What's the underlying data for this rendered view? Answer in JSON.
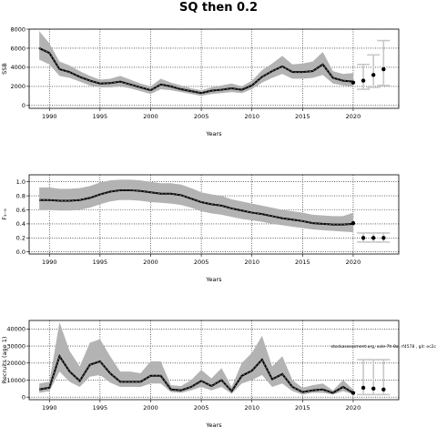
{
  "title": "SQ then 0.2",
  "chart_data": [
    {
      "type": "line",
      "ylabel": "SSB",
      "xlabel": "Years",
      "xlim": [
        1988,
        2024.5
      ],
      "ylim": [
        -300,
        8000
      ],
      "xticks": [
        1990,
        1995,
        2000,
        2005,
        2010,
        2015,
        2020
      ],
      "yticks": [
        0,
        2000,
        4000,
        6000,
        8000
      ],
      "ytick_labels": [
        "0",
        "2000",
        "4000",
        "6000",
        "8000"
      ],
      "grid": true,
      "x": [
        1989,
        1990,
        1991,
        1992,
        1993,
        1994,
        1995,
        1996,
        1997,
        1998,
        1999,
        2000,
        2001,
        2002,
        2003,
        2004,
        2005,
        2006,
        2007,
        2008,
        2009,
        2010,
        2011,
        2012,
        2013,
        2014,
        2015,
        2016,
        2017,
        2018,
        2019,
        2020
      ],
      "median": [
        6000,
        5500,
        3800,
        3500,
        3000,
        2600,
        2300,
        2350,
        2500,
        2200,
        1900,
        1600,
        2200,
        2000,
        1700,
        1500,
        1300,
        1550,
        1650,
        1800,
        1650,
        2100,
        3000,
        3600,
        4100,
        3500,
        3500,
        3600,
        4300,
        2900,
        2600,
        2500
      ],
      "lower": [
        4800,
        4300,
        3100,
        2900,
        2500,
        2100,
        1900,
        1900,
        2000,
        1800,
        1500,
        1200,
        1700,
        1600,
        1400,
        1200,
        1000,
        1200,
        1300,
        1400,
        1300,
        1700,
        2400,
        2900,
        3300,
        2800,
        2800,
        2900,
        3200,
        2300,
        2100,
        2000
      ],
      "upper": [
        7800,
        6500,
        4600,
        4200,
        3600,
        3100,
        2700,
        2800,
        3100,
        2700,
        2300,
        2000,
        2800,
        2400,
        2100,
        1800,
        1600,
        1900,
        2100,
        2300,
        2000,
        2600,
        3700,
        4400,
        5200,
        4300,
        4400,
        4600,
        5600,
        3600,
        3300,
        3400
      ],
      "projection": {
        "x": [
          2020,
          2021,
          2022,
          2023
        ],
        "median": [
          2400,
          2600,
          3200,
          3800
        ],
        "lower": [
          1900,
          1700,
          1900,
          2100
        ],
        "upper": [
          3100,
          4300,
          5300,
          6800
        ]
      }
    },
    {
      "type": "line",
      "ylabel": "F₃₋₆",
      "xlabel": "Years",
      "xlim": [
        1988,
        2024.5
      ],
      "ylim": [
        -0.03,
        1.1
      ],
      "xticks": [
        1990,
        1995,
        2000,
        2005,
        2010,
        2015,
        2020
      ],
      "yticks": [
        0,
        0.2,
        0.4,
        0.6,
        0.8,
        1.0
      ],
      "ytick_labels": [
        "0.0",
        "0.2",
        "0.4",
        "0.6",
        "0.8",
        "1.0"
      ],
      "grid": true,
      "x": [
        1989,
        1990,
        1991,
        1992,
        1993,
        1994,
        1995,
        1996,
        1997,
        1998,
        1999,
        2000,
        2001,
        2002,
        2003,
        2004,
        2005,
        2006,
        2007,
        2008,
        2009,
        2010,
        2011,
        2012,
        2013,
        2014,
        2015,
        2016,
        2017,
        2018,
        2019,
        2020
      ],
      "median": [
        0.74,
        0.74,
        0.73,
        0.73,
        0.74,
        0.77,
        0.82,
        0.86,
        0.88,
        0.88,
        0.87,
        0.85,
        0.83,
        0.83,
        0.81,
        0.76,
        0.71,
        0.68,
        0.66,
        0.62,
        0.59,
        0.56,
        0.54,
        0.51,
        0.48,
        0.46,
        0.44,
        0.41,
        0.4,
        0.39,
        0.39,
        0.4
      ],
      "lower": [
        0.6,
        0.6,
        0.59,
        0.59,
        0.6,
        0.63,
        0.68,
        0.72,
        0.74,
        0.74,
        0.73,
        0.71,
        0.7,
        0.69,
        0.67,
        0.63,
        0.58,
        0.55,
        0.53,
        0.5,
        0.47,
        0.45,
        0.43,
        0.4,
        0.38,
        0.36,
        0.34,
        0.32,
        0.31,
        0.3,
        0.29,
        0.28
      ],
      "upper": [
        0.92,
        0.92,
        0.9,
        0.9,
        0.91,
        0.94,
        0.99,
        1.02,
        1.03,
        1.03,
        1.02,
        1.0,
        0.98,
        0.98,
        0.96,
        0.91,
        0.85,
        0.82,
        0.8,
        0.75,
        0.72,
        0.69,
        0.66,
        0.63,
        0.6,
        0.58,
        0.56,
        0.53,
        0.52,
        0.51,
        0.51,
        0.56
      ],
      "projection": {
        "x": [
          2020,
          2021,
          2022,
          2023
        ],
        "median": [
          0.41,
          0.2,
          0.2,
          0.2
        ],
        "lower": [
          0.4,
          0.14,
          0.14,
          0.14
        ],
        "upper": [
          0.57,
          0.27,
          0.27,
          0.27
        ]
      }
    },
    {
      "type": "line",
      "ylabel": "Recruits (age 1)",
      "xlabel": "Years",
      "xlim": [
        1988,
        2024.5
      ],
      "ylim": [
        -1500,
        45000
      ],
      "xticks": [
        1990,
        1995,
        2000,
        2005,
        2010,
        2015,
        2020
      ],
      "yticks": [
        0,
        10000,
        20000,
        30000,
        40000
      ],
      "ytick_labels": [
        "0",
        "10000",
        "20000",
        "30000",
        "40000"
      ],
      "grid": true,
      "annotation": "stockassessment.org, sole-7h-8a, rf4578 , git: ec2c",
      "x": [
        1989,
        1990,
        1991,
        1992,
        1993,
        1994,
        1995,
        1996,
        1997,
        1998,
        1999,
        2000,
        2001,
        2002,
        2003,
        2004,
        2005,
        2006,
        2007,
        2008,
        2009,
        2010,
        2011,
        2012,
        2013,
        2014,
        2015,
        2016,
        2017,
        2018,
        2019,
        2020
      ],
      "median": [
        4500,
        5500,
        24000,
        15000,
        9500,
        19000,
        21000,
        14000,
        9000,
        9000,
        9000,
        12500,
        12500,
        4500,
        4000,
        6000,
        9500,
        6500,
        10000,
        3500,
        12500,
        15500,
        22000,
        10500,
        13500,
        6000,
        3000,
        4000,
        4500,
        2500,
        6000,
        2500
      ],
      "lower": [
        2500,
        3500,
        15000,
        9000,
        6000,
        12000,
        13000,
        8500,
        6000,
        6000,
        6000,
        8000,
        8000,
        3000,
        2500,
        4000,
        6000,
        4000,
        6000,
        2000,
        8000,
        10000,
        13000,
        6000,
        8000,
        3500,
        1500,
        2500,
        2500,
        1500,
        3500,
        1500
      ],
      "upper": [
        8000,
        9000,
        44000,
        27000,
        18000,
        32000,
        34000,
        24000,
        15000,
        15000,
        14000,
        21000,
        21000,
        7000,
        6500,
        10000,
        16000,
        11000,
        17000,
        6000,
        20000,
        26000,
        36000,
        18000,
        24000,
        10000,
        5500,
        7000,
        8000,
        4000,
        10000,
        4500
      ],
      "projection": {
        "x": [
          2020,
          2021,
          2022,
          2023
        ],
        "median": [
          2500,
          5500,
          5000,
          4500
        ],
        "lower": [
          1500,
          1500,
          1500,
          1500
        ],
        "upper": [
          4500,
          22000,
          22000,
          22000
        ]
      }
    }
  ]
}
